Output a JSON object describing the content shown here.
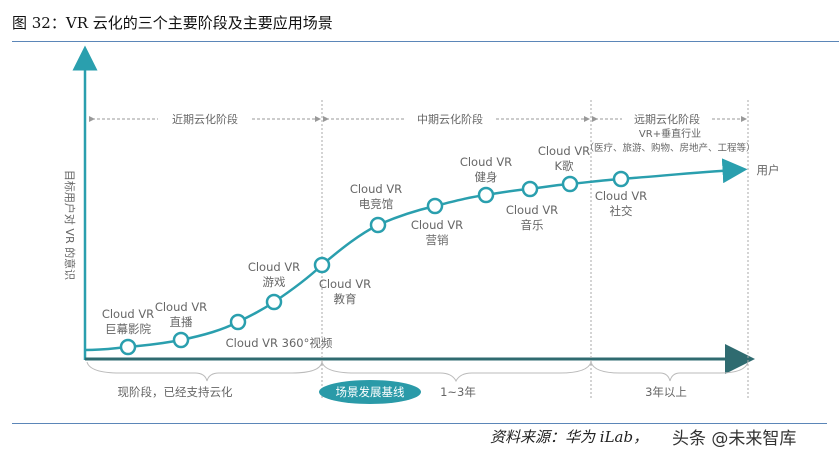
{
  "title": "图 32：VR 云化的三个主要阶段及主要应用场景",
  "source": "资料来源：华为 iLab，",
  "watermark": "头条 @未来智库",
  "colors": {
    "curve": "#2a9fae",
    "axis": "#2f6b70",
    "pill": "#2a9aa8",
    "text": "#666666"
  },
  "y_axis_label": "目标用户对 VR 的意识",
  "x_axis_end_label": "用户",
  "phases": [
    {
      "label": "近期云化阶段"
    },
    {
      "label": "中期云化阶段"
    },
    {
      "label": "远期云化阶段",
      "sub1": "VR+垂直行业",
      "sub2": "（医疗、旅游、购物、房地产、工程等）"
    }
  ],
  "timeline": [
    {
      "label": "现阶段，已经支持云化"
    },
    {
      "label": "1~3年"
    },
    {
      "label": "3年以上"
    }
  ],
  "baseline_pill": "场景发展基线",
  "nodes": [
    {
      "line1": "Cloud VR",
      "line2": "巨幕影院"
    },
    {
      "line1": "Cloud VR",
      "line2": "直播"
    },
    {
      "line1": "Cloud VR 360°视频",
      "line2": ""
    },
    {
      "line1": "Cloud VR",
      "line2": "游戏"
    },
    {
      "line1": "Cloud VR",
      "line2": "教育"
    },
    {
      "line1": "Cloud VR",
      "line2": "电竞馆"
    },
    {
      "line1": "Cloud VR",
      "line2": "营销"
    },
    {
      "line1": "Cloud VR",
      "line2": "健身"
    },
    {
      "line1": "Cloud VR",
      "line2": "音乐"
    },
    {
      "line1": "Cloud VR",
      "line2": "K歌"
    },
    {
      "line1": "Cloud VR",
      "line2": "社交"
    }
  ]
}
